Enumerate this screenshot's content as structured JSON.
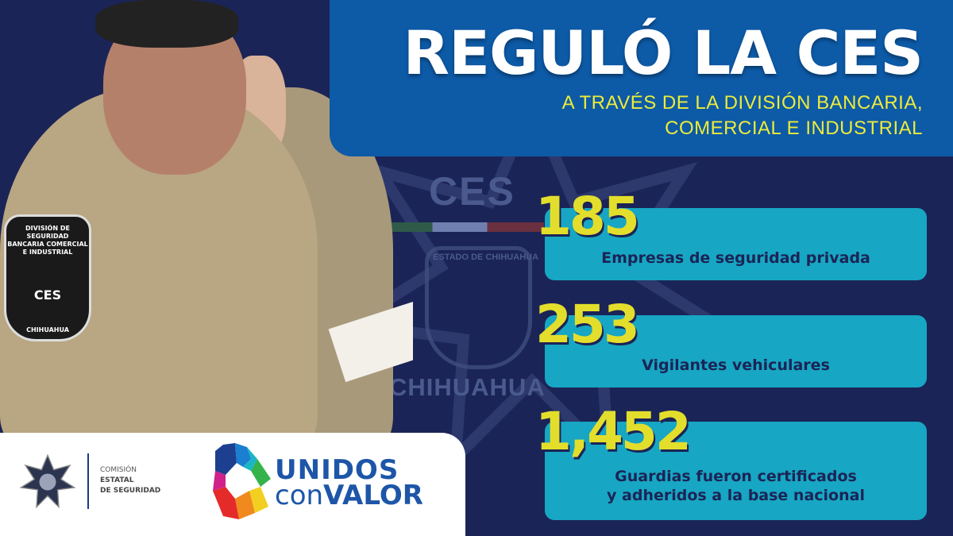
{
  "header": {
    "title": "REGULÓ LA CES",
    "subtitle_line1": "A TRAVÉS DE LA DIVISIÓN BANCARIA,",
    "subtitle_line2": "COMERCIAL E INDUSTRIAL"
  },
  "background": {
    "watermark_top": "CES",
    "watermark_bottom": "CHIHUAHUA",
    "badge_text": "ESTADO DE CHIHUAHUA"
  },
  "photo": {
    "patch_lines": [
      "DIVISIÓN DE SEGURIDAD",
      "BANCARIA COMERCIAL",
      "E INDUSTRIAL"
    ],
    "patch_ces": "CES",
    "patch_city": "CHIHUAHUA"
  },
  "stats": [
    {
      "value": "185",
      "label": "Empresas de seguridad privada"
    },
    {
      "value": "253",
      "label": "Vigilantes vehiculares"
    },
    {
      "value": "1,452",
      "label_line1": "Guardias fueron certificados",
      "label_line2": "y adheridos a la base nacional"
    }
  ],
  "footer": {
    "org_line1": "COMISIÓN",
    "org_line2": "ESTATAL",
    "org_line3": "DE SEGURIDAD",
    "brand_top": "UNIDOS",
    "brand_con": "con",
    "brand_valor": "VALOR"
  },
  "colors": {
    "background": "#1b2456",
    "header": "#0d5aa7",
    "card": "#17a6c3",
    "number": "#e3de2c",
    "subtitle": "#ecec3a"
  }
}
